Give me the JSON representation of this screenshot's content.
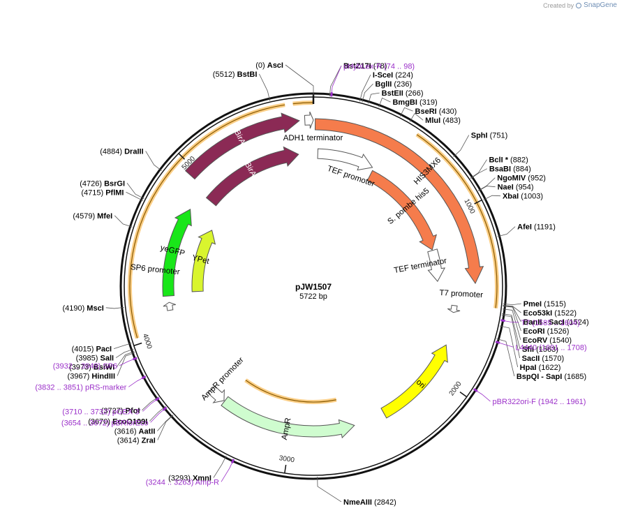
{
  "credit": {
    "text": "Created by",
    "brand": "SnapGene"
  },
  "plasmid": {
    "name": "pJW1507",
    "length_label": "5722 bp",
    "length": 5722
  },
  "colors": {
    "birA": "#8b2a55",
    "his3mx6": "#f57c4c",
    "spombe": "#f57c4c",
    "yegfp": "#19e619",
    "ypet": "#d9f52e",
    "ori": "#ffff00",
    "ampr": "#cffccf",
    "terminator": "#ffffff",
    "primer": "#9b30c9",
    "orange_band": "#f5a623"
  },
  "ticks": [
    {
      "bp": 1000,
      "label": "1000"
    },
    {
      "bp": 2000,
      "label": "2000"
    },
    {
      "bp": 3000,
      "label": "3000"
    },
    {
      "bp": 4000,
      "label": "4000"
    },
    {
      "bp": 5000,
      "label": "5000"
    }
  ],
  "features": [
    {
      "id": "birA-outer",
      "label": "BirA",
      "start": 4960,
      "end": 5645,
      "r": 238,
      "w": 18,
      "dir": 1,
      "color": "#8b2a55",
      "textColor": "#ffffff"
    },
    {
      "id": "adh1-term",
      "label": "",
      "start": 5675,
      "end": 5722,
      "r": 238,
      "w": 14,
      "dir": 1,
      "color": "#ffffff",
      "textColor": "#000"
    },
    {
      "id": "his3mx6",
      "label": "HIS3MX6",
      "start": 10,
      "end": 1415,
      "r": 232,
      "w": 16,
      "dir": 1,
      "color": "#f57c4c",
      "textColor": "#000"
    },
    {
      "id": "birA-inner",
      "label": "BirA",
      "start": 4920,
      "end": 5620,
      "r": 190,
      "w": 18,
      "dir": 1,
      "color": "#8b2a55",
      "textColor": "#ffffff"
    },
    {
      "id": "tef-prom",
      "label": "",
      "start": 30,
      "end": 420,
      "r": 190,
      "w": 14,
      "dir": 1,
      "color": "#ffffff",
      "textColor": "#000"
    },
    {
      "id": "spombe",
      "label": "S. pombe his5",
      "start": 430,
      "end": 1160,
      "r": 178,
      "w": 16,
      "dir": 1,
      "color": "#f57c4c",
      "textColor": "#000"
    },
    {
      "id": "tef-term",
      "label": "",
      "start": 1165,
      "end": 1395,
      "r": 178,
      "w": 14,
      "dir": 1,
      "color": "#ffffff",
      "textColor": "#000"
    },
    {
      "id": "yegfp",
      "label": "yeGFP",
      "start": 4230,
      "end": 4800,
      "r": 208,
      "w": 16,
      "dir": 1,
      "color": "#19e619",
      "textColor": "#000"
    },
    {
      "id": "ypet",
      "label": "YPet",
      "start": 4250,
      "end": 4750,
      "r": 166,
      "w": 16,
      "dir": 1,
      "color": "#d9f52e",
      "textColor": "#000"
    },
    {
      "id": "sp6",
      "label": "",
      "start": 4140,
      "end": 4190,
      "r": 208,
      "w": 8,
      "dir": 1,
      "color": "#ffffff",
      "textColor": "#000"
    },
    {
      "id": "t7",
      "label": "",
      "start": 1555,
      "end": 1600,
      "r": 204,
      "w": 8,
      "dir": 1,
      "color": "#ffffff",
      "textColor": "#000"
    },
    {
      "id": "ori",
      "label": "ori",
      "start": 1810,
      "end": 2400,
      "r": 208,
      "w": 16,
      "dir": -1,
      "color": "#ffff00",
      "textColor": "#000"
    },
    {
      "id": "ampr",
      "label": "AmpR",
      "start": 2600,
      "end": 3460,
      "r": 208,
      "w": 16,
      "dir": -1,
      "color": "#cffccf",
      "textColor": "#000"
    },
    {
      "id": "ampr-prom",
      "label": "",
      "start": 3465,
      "end": 3570,
      "r": 208,
      "w": 14,
      "dir": -1,
      "color": "#ffffff",
      "textColor": "#000"
    }
  ],
  "feature_labels": [
    {
      "text": "ADH1 terminator",
      "bp": 5720,
      "r": 212,
      "rot": true
    },
    {
      "text": "TEF promoter",
      "bp": 300,
      "r": 166,
      "rot": true
    },
    {
      "text": "TEF terminator",
      "bp": 1260,
      "r": 156,
      "rot": true
    },
    {
      "text": "T7 promoter",
      "bp": 1480,
      "r": 212,
      "rot": true
    },
    {
      "text": "SP6 promoter",
      "bp": 4385,
      "r": 228,
      "rot": true
    },
    {
      "text": "AmpR promoter",
      "bp": 3565,
      "r": 186,
      "rot": true
    }
  ],
  "orange_bands": [
    {
      "start": 5620,
      "end": 5720,
      "r": 263,
      "note": "top"
    },
    {
      "start": 4030,
      "end": 5580,
      "r": 263
    },
    {
      "start": 545,
      "end": 1540,
      "r": 263
    },
    {
      "start": 2680,
      "end": 3430,
      "r": 166
    }
  ],
  "sites_right": [
    {
      "name": "BstZ17I",
      "pos": "(78)",
      "bp": 78
    },
    {
      "name": "I-SceI",
      "pos": "(224)",
      "bp": 224
    },
    {
      "name": "BglII",
      "pos": "(236)",
      "bp": 236
    },
    {
      "name": "BstEII",
      "pos": "(266)",
      "bp": 266
    },
    {
      "name": "BmgBI",
      "pos": "(319)",
      "bp": 319
    },
    {
      "name": "BseRI",
      "pos": "(430)",
      "bp": 430
    },
    {
      "name": "MluI",
      "pos": "(483)",
      "bp": 483
    },
    {
      "name": "SphI",
      "pos": "(751)",
      "bp": 751
    },
    {
      "name": "BclI *",
      "pos": "(882)",
      "bp": 882
    },
    {
      "name": "BsaBI",
      "pos": "(884)",
      "bp": 884
    },
    {
      "name": "NgoMIV",
      "pos": "(952)",
      "bp": 952
    },
    {
      "name": "NaeI",
      "pos": "(954)",
      "bp": 954
    },
    {
      "name": "XbaI",
      "pos": "(1003)",
      "bp": 1003
    },
    {
      "name": "AfeI",
      "pos": "(1191)",
      "bp": 1191
    },
    {
      "name": "PmeI",
      "pos": "(1515)",
      "bp": 1515
    },
    {
      "name": "Eco53kI",
      "pos": "(1522)",
      "bp": 1522
    },
    {
      "name": "BanII  - SacI",
      "pos": "(1524)",
      "bp": 1524
    },
    {
      "name": "EcoRI",
      "pos": "(1526)",
      "bp": 1526
    },
    {
      "name": "EcoRV",
      "pos": "(1540)",
      "bp": 1540
    },
    {
      "name": "SfiI",
      "pos": "(1563)",
      "bp": 1563
    },
    {
      "name": "SacII",
      "pos": "(1570)",
      "bp": 1570
    },
    {
      "name": "HpaI",
      "pos": "(1622)",
      "bp": 1622
    },
    {
      "name": "BspQI  - SapI",
      "pos": "(1685)",
      "bp": 1685
    },
    {
      "name": "NmeAIII",
      "pos": "(2842)",
      "bp": 2842
    }
  ],
  "sites_left": [
    {
      "name": "AscI",
      "pos": "(0)",
      "bp": 0
    },
    {
      "name": "BstBI",
      "pos": "(5512)",
      "bp": 5512
    },
    {
      "name": "DraIII",
      "pos": "(4884)",
      "bp": 4884
    },
    {
      "name": "BsrGI",
      "pos": "(4726)",
      "bp": 4726
    },
    {
      "name": "PflMI",
      "pos": "(4715)",
      "bp": 4715
    },
    {
      "name": "MfeI",
      "pos": "(4579)",
      "bp": 4579
    },
    {
      "name": "MscI",
      "pos": "(4190)",
      "bp": 4190
    },
    {
      "name": "PacI",
      "pos": "(4015)",
      "bp": 4015
    },
    {
      "name": "SalI",
      "pos": "(3985)",
      "bp": 3985
    },
    {
      "name": "BsiWI",
      "pos": "(3973)",
      "bp": 3973
    },
    {
      "name": "HindIII",
      "pos": "(3967)",
      "bp": 3967
    },
    {
      "name": "PfoI",
      "pos": "(3727)",
      "bp": 3727
    },
    {
      "name": "EcoO109I",
      "pos": "(3670)",
      "bp": 3670
    },
    {
      "name": "AatII",
      "pos": "(3616)",
      "bp": 3616
    },
    {
      "name": "ZraI",
      "pos": "(3614)",
      "bp": 3614
    },
    {
      "name": "XmnI",
      "pos": "(3293)",
      "bp": 3293
    }
  ],
  "primers": [
    {
      "name": "pHybLex-R",
      "range": "(74 .. 98)",
      "bp": 86,
      "side": "right"
    },
    {
      "name": "T7",
      "range": "(1585 .. 1604)",
      "bp": 1594,
      "side": "right"
    },
    {
      "name": "L4440",
      "range": "(1691 .. 1708)",
      "bp": 1700,
      "side": "right"
    },
    {
      "name": "pBR322ori-F",
      "range": "(1942 .. 1961)",
      "bp": 1950,
      "side": "right"
    },
    {
      "name": "Amp-R",
      "range": "(3244 .. 3263)",
      "bp": 3254,
      "side": "left"
    },
    {
      "name": "pBRforEco",
      "range": "(3654 .. 3672)",
      "bp": 3663,
      "side": "left"
    },
    {
      "name": "pGEX 3'",
      "range": "(3710 .. 3732)",
      "bp": 3721,
      "side": "left"
    },
    {
      "name": "pRS-marker",
      "range": "(3832 .. 3851)",
      "bp": 3842,
      "side": "left"
    },
    {
      "name": "SP6",
      "range": "(3932 .. 3949)",
      "bp": 3940,
      "side": "left"
    }
  ]
}
